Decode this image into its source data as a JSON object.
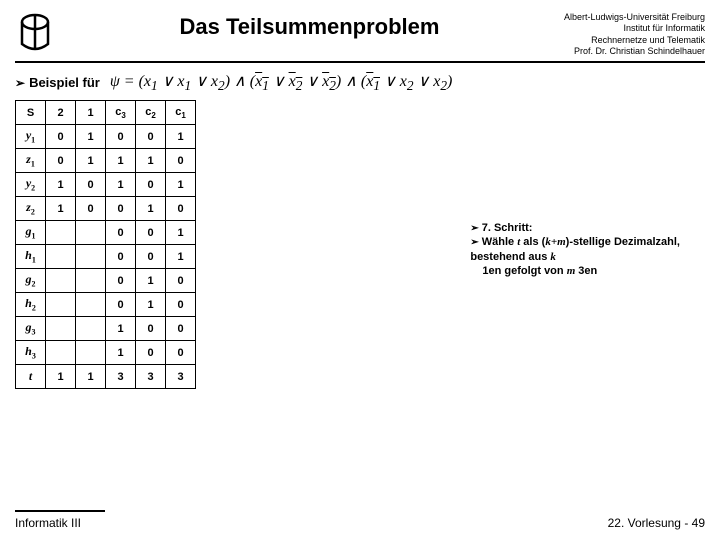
{
  "header": {
    "title": "Das Teilsummenproblem",
    "affiliation": "Albert-Ludwigs-Universität Freiburg\nInstitut für Informatik\nRechnernetze und Telematik\nProf. Dr. Christian Schindelhauer"
  },
  "example_label": "Beispiel für",
  "formula_parts": {
    "psi": "ψ",
    "eq": " = ",
    "lp": "(",
    "rp": ")",
    "and": " ∧ ",
    "or": " ∨ ",
    "x1": "x",
    "s1": "1",
    "x2": "x",
    "s2": "2"
  },
  "table": {
    "columns": [
      "S",
      "2",
      "1",
      "c3",
      "c2",
      "c1"
    ],
    "rows": [
      {
        "label": "y1",
        "cells": [
          "0",
          "1",
          "0",
          "0",
          "1"
        ]
      },
      {
        "label": "z1",
        "cells": [
          "0",
          "1",
          "1",
          "1",
          "0"
        ]
      },
      {
        "label": "y2",
        "cells": [
          "1",
          "0",
          "1",
          "0",
          "1"
        ]
      },
      {
        "label": "z2",
        "cells": [
          "1",
          "0",
          "0",
          "1",
          "0"
        ]
      },
      {
        "label": "g1",
        "cells": [
          "",
          "",
          "0",
          "0",
          "1"
        ]
      },
      {
        "label": "h1",
        "cells": [
          "",
          "",
          "0",
          "0",
          "1"
        ]
      },
      {
        "label": "g2",
        "cells": [
          "",
          "",
          "0",
          "1",
          "0"
        ]
      },
      {
        "label": "h2",
        "cells": [
          "",
          "",
          "0",
          "1",
          "0"
        ]
      },
      {
        "label": "g3",
        "cells": [
          "",
          "",
          "1",
          "0",
          "0"
        ]
      },
      {
        "label": "h3",
        "cells": [
          "",
          "",
          "1",
          "0",
          "0"
        ]
      },
      {
        "label": "t",
        "cells": [
          "1",
          "1",
          "3",
          "3",
          "3"
        ]
      }
    ]
  },
  "step": {
    "title": "7. Schritt:",
    "line2a": "Wähle ",
    "t": "t",
    "line2b": " als (",
    "km": "k+m",
    "line2c": ")-stellige Dezimalzahl, bestehend aus ",
    "k": "k",
    "line3a": "1en gefolgt von ",
    "m": "m",
    "line3b": " 3en"
  },
  "footer": {
    "left": "Informatik III",
    "right": "22. Vorlesung - 49"
  }
}
